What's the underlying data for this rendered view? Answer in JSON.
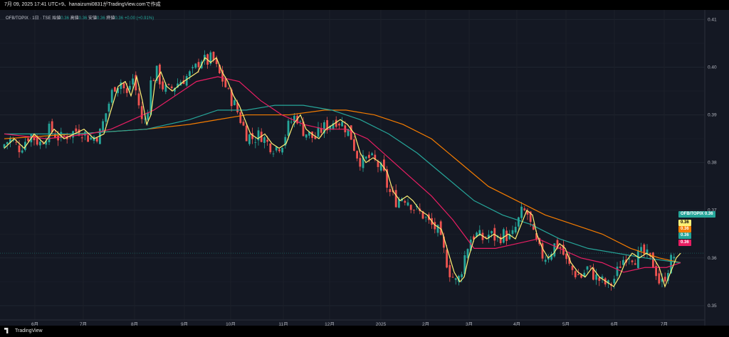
{
  "header": {
    "title": "7月 09, 2025 17:41 UTC+9、hanaizumi0831がTradingView.comで作成"
  },
  "legend": {
    "symbol": "OFB/TOPIX · 1日 · TSE",
    "open_label": "始値",
    "open": "0.36",
    "high_label": "高値",
    "high": "0.36",
    "low_label": "安値",
    "low": "0.36",
    "close_label": "終値",
    "close": "0.36",
    "change": "+0.00 (+0.91%)"
  },
  "price_tags": [
    {
      "label": "OFB/TOPIX",
      "value": "0.36",
      "color": "#26a69a"
    },
    {
      "label": "",
      "value": "0.36",
      "color": "#fff176"
    },
    {
      "label": "",
      "value": "0.36",
      "color": "#f57c00"
    },
    {
      "label": "",
      "value": "0.36",
      "color": "#26a69a"
    },
    {
      "label": "",
      "value": "0.36",
      "color": "#e91e63"
    }
  ],
  "footer": {
    "brand": "TradingView"
  },
  "colors": {
    "up": "#26a69a",
    "down": "#ef5350",
    "ma_fast": "#fff176",
    "ma_mid": "#e91e63",
    "ma_slow": "#26a69a",
    "ma_long": "#f57c00",
    "background": "#141823"
  },
  "chart_data": {
    "type": "candlestick",
    "x_tick_labels": [
      "6月",
      "7月",
      "8月",
      "9月",
      "10月",
      "11月",
      "12月",
      "2025",
      "2月",
      "3月",
      "4月",
      "5月",
      "6月",
      "7月"
    ],
    "y_tick_labels": [
      "0.41",
      "0.40",
      "0.39",
      "0.38",
      "0.37",
      "0.36",
      "0.35"
    ],
    "ylim": [
      0.347,
      0.412
    ],
    "y_ticks": [
      0.41,
      0.4,
      0.39,
      0.38,
      0.37,
      0.36,
      0.35
    ],
    "grid": true,
    "last_price": 0.361,
    "price_path": [
      [
        0,
        0.383
      ],
      [
        14,
        0.385
      ],
      [
        28,
        0.383
      ],
      [
        42,
        0.386
      ],
      [
        56,
        0.384
      ],
      [
        70,
        0.387
      ],
      [
        84,
        0.385
      ],
      [
        98,
        0.386
      ],
      [
        112,
        0.387
      ],
      [
        126,
        0.385
      ],
      [
        140,
        0.386
      ],
      [
        150,
        0.391
      ],
      [
        160,
        0.396
      ],
      [
        170,
        0.397
      ],
      [
        178,
        0.394
      ],
      [
        186,
        0.398
      ],
      [
        194,
        0.393
      ],
      [
        200,
        0.388
      ],
      [
        206,
        0.39
      ],
      [
        212,
        0.397
      ],
      [
        220,
        0.399
      ],
      [
        228,
        0.396
      ],
      [
        236,
        0.395
      ],
      [
        244,
        0.396
      ],
      [
        252,
        0.397
      ],
      [
        262,
        0.398
      ],
      [
        272,
        0.399
      ],
      [
        282,
        0.402
      ],
      [
        290,
        0.401
      ],
      [
        298,
        0.402
      ],
      [
        306,
        0.399
      ],
      [
        314,
        0.397
      ],
      [
        322,
        0.394
      ],
      [
        330,
        0.392
      ],
      [
        338,
        0.389
      ],
      [
        346,
        0.386
      ],
      [
        356,
        0.385
      ],
      [
        366,
        0.386
      ],
      [
        376,
        0.384
      ],
      [
        386,
        0.383
      ],
      [
        396,
        0.384
      ],
      [
        406,
        0.388
      ],
      [
        416,
        0.39
      ],
      [
        424,
        0.387
      ],
      [
        432,
        0.386
      ],
      [
        442,
        0.385
      ],
      [
        452,
        0.387
      ],
      [
        462,
        0.388
      ],
      [
        472,
        0.389
      ],
      [
        482,
        0.388
      ],
      [
        492,
        0.386
      ],
      [
        500,
        0.382
      ],
      [
        508,
        0.38
      ],
      [
        518,
        0.381
      ],
      [
        528,
        0.38
      ],
      [
        538,
        0.378
      ],
      [
        546,
        0.374
      ],
      [
        556,
        0.372
      ],
      [
        566,
        0.373
      ],
      [
        574,
        0.372
      ],
      [
        584,
        0.37
      ],
      [
        594,
        0.369
      ],
      [
        604,
        0.367
      ],
      [
        614,
        0.366
      ],
      [
        622,
        0.362
      ],
      [
        632,
        0.357
      ],
      [
        640,
        0.355
      ],
      [
        646,
        0.356
      ],
      [
        652,
        0.36
      ],
      [
        660,
        0.364
      ],
      [
        668,
        0.365
      ],
      [
        678,
        0.364
      ],
      [
        688,
        0.365
      ],
      [
        698,
        0.364
      ],
      [
        708,
        0.365
      ],
      [
        718,
        0.364
      ],
      [
        726,
        0.367
      ],
      [
        734,
        0.37
      ],
      [
        742,
        0.369
      ],
      [
        748,
        0.365
      ],
      [
        756,
        0.362
      ],
      [
        764,
        0.36
      ],
      [
        772,
        0.361
      ],
      [
        780,
        0.363
      ],
      [
        788,
        0.362
      ],
      [
        796,
        0.359
      ],
      [
        806,
        0.357
      ],
      [
        816,
        0.356
      ],
      [
        826,
        0.358
      ],
      [
        836,
        0.356
      ],
      [
        846,
        0.355
      ],
      [
        856,
        0.354
      ],
      [
        864,
        0.356
      ],
      [
        872,
        0.359
      ],
      [
        882,
        0.361
      ],
      [
        892,
        0.36
      ],
      [
        902,
        0.361
      ],
      [
        912,
        0.36
      ],
      [
        920,
        0.358
      ],
      [
        928,
        0.354
      ],
      [
        936,
        0.357
      ],
      [
        944,
        0.36
      ],
      [
        950,
        0.361
      ]
    ],
    "ma_mid_path": [
      [
        0,
        0.386
      ],
      [
        60,
        0.385
      ],
      [
        120,
        0.386
      ],
      [
        150,
        0.387
      ],
      [
        180,
        0.389
      ],
      [
        210,
        0.391
      ],
      [
        240,
        0.394
      ],
      [
        270,
        0.397
      ],
      [
        300,
        0.398
      ],
      [
        330,
        0.397
      ],
      [
        360,
        0.393
      ],
      [
        390,
        0.39
      ],
      [
        420,
        0.388
      ],
      [
        450,
        0.387
      ],
      [
        480,
        0.387
      ],
      [
        510,
        0.385
      ],
      [
        540,
        0.381
      ],
      [
        570,
        0.377
      ],
      [
        600,
        0.373
      ],
      [
        630,
        0.368
      ],
      [
        660,
        0.362
      ],
      [
        690,
        0.362
      ],
      [
        720,
        0.363
      ],
      [
        750,
        0.364
      ],
      [
        780,
        0.362
      ],
      [
        810,
        0.36
      ],
      [
        840,
        0.359
      ],
      [
        870,
        0.357
      ],
      [
        900,
        0.358
      ],
      [
        930,
        0.358
      ],
      [
        950,
        0.359
      ]
    ],
    "ma_slow_path": [
      [
        0,
        0.386
      ],
      [
        100,
        0.386
      ],
      [
        200,
        0.387
      ],
      [
        260,
        0.389
      ],
      [
        300,
        0.391
      ],
      [
        340,
        0.391
      ],
      [
        380,
        0.392
      ],
      [
        420,
        0.392
      ],
      [
        460,
        0.391
      ],
      [
        500,
        0.389
      ],
      [
        540,
        0.386
      ],
      [
        580,
        0.382
      ],
      [
        620,
        0.377
      ],
      [
        660,
        0.372
      ],
      [
        700,
        0.369
      ],
      [
        740,
        0.367
      ],
      [
        780,
        0.364
      ],
      [
        820,
        0.362
      ],
      [
        860,
        0.361
      ],
      [
        900,
        0.36
      ],
      [
        950,
        0.359
      ]
    ],
    "ma_long_path": [
      [
        0,
        0.385
      ],
      [
        100,
        0.386
      ],
      [
        200,
        0.387
      ],
      [
        260,
        0.388
      ],
      [
        300,
        0.389
      ],
      [
        340,
        0.39
      ],
      [
        400,
        0.39
      ],
      [
        450,
        0.391
      ],
      [
        480,
        0.391
      ],
      [
        520,
        0.39
      ],
      [
        560,
        0.388
      ],
      [
        600,
        0.385
      ],
      [
        640,
        0.38
      ],
      [
        680,
        0.375
      ],
      [
        720,
        0.372
      ],
      [
        760,
        0.369
      ],
      [
        800,
        0.367
      ],
      [
        840,
        0.365
      ],
      [
        880,
        0.362
      ],
      [
        920,
        0.36
      ],
      [
        950,
        0.359
      ]
    ]
  }
}
